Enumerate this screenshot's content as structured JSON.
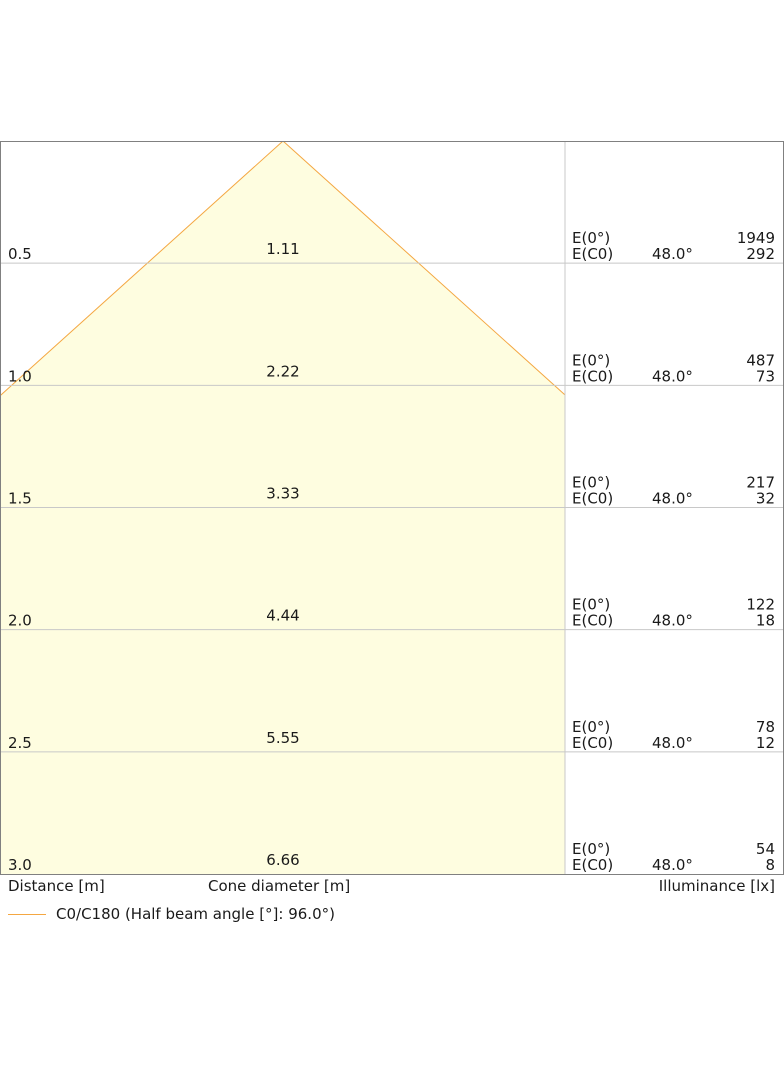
{
  "chart_data": {
    "type": "area",
    "colors": {
      "cone_fill": "#fefde0",
      "cone_line": "#f4a742",
      "grid": "#c8c8c8",
      "border": "#808080"
    },
    "rows": [
      {
        "distance": "0.5",
        "diameter": "1.11",
        "e0_label": "E(0°)",
        "ec0_label": "E(C0)",
        "angle": "48.0°",
        "e0": "1949",
        "ec0": "292"
      },
      {
        "distance": "1.0",
        "diameter": "2.22",
        "e0_label": "E(0°)",
        "ec0_label": "E(C0)",
        "angle": "48.0°",
        "e0": "487",
        "ec0": "73"
      },
      {
        "distance": "1.5",
        "diameter": "3.33",
        "e0_label": "E(0°)",
        "ec0_label": "E(C0)",
        "angle": "48.0°",
        "e0": "217",
        "ec0": "32"
      },
      {
        "distance": "2.0",
        "diameter": "4.44",
        "e0_label": "E(0°)",
        "ec0_label": "E(C0)",
        "angle": "48.0°",
        "e0": "122",
        "ec0": "18"
      },
      {
        "distance": "2.5",
        "diameter": "5.55",
        "e0_label": "E(0°)",
        "ec0_label": "E(C0)",
        "angle": "48.0°",
        "e0": "78",
        "ec0": "12"
      },
      {
        "distance": "3.0",
        "diameter": "6.66",
        "e0_label": "E(0°)",
        "ec0_label": "E(C0)",
        "angle": "48.0°",
        "e0": "54",
        "ec0": "8"
      }
    ],
    "xlabel": "Distance [m]",
    "diameter_label": "Cone diameter [m]",
    "ylabel": "Illuminance [lx]",
    "legend": "C0/C180 (Half beam angle [°]: 96.0°)",
    "half_beam_angle_deg": 96.0,
    "max_distance_m": 3.0
  }
}
